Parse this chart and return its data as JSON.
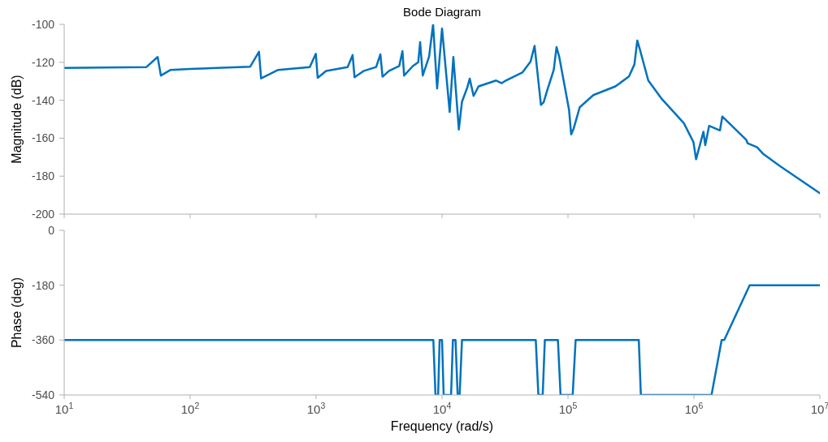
{
  "chart_data": [
    {
      "type": "line",
      "title": "Bode Diagram",
      "ylabel": "Magnitude (dB)",
      "log": "x",
      "grid": false,
      "tick_labels": "y",
      "marker": "none",
      "line_style": "solid",
      "xlim": [
        10,
        10000000
      ],
      "xticks": [
        10,
        100,
        1000,
        10000,
        100000,
        1000000,
        10000000
      ],
      "ylim": [
        -200,
        -100
      ],
      "yticks": [
        -200,
        -180,
        -160,
        -140,
        -120,
        -100
      ],
      "series": [
        {
          "color": "#0072bd",
          "x": [
            10,
            45,
            55.2,
            58.6,
            70,
            100,
            300,
            352,
            366,
            500,
            891,
            995,
            1030,
            1200,
            1780,
            1950,
            2020,
            2400,
            3000,
            3240,
            3370,
            3800,
            4570,
            4850,
            5000,
            5860,
            6470,
            6700,
            7030,
            7890,
            8490,
            9140,
            10000,
            11500,
            12300,
            13600,
            14400,
            15900,
            16600,
            17800,
            19500,
            26900,
            29800,
            32100,
            43400,
            50400,
            54300,
            61000,
            64100,
            68100,
            77100,
            81100,
            85100,
            102000,
            106000,
            111000,
            124000,
            159000,
            238000,
            305000,
            337000,
            355000,
            373000,
            434000,
            557000,
            832000,
            991000,
            1040000,
            1190000,
            1230000,
            1320000,
            1610000,
            1680000,
            2600000,
            2670000,
            3180000,
            3550000,
            4790000,
            10000000
          ],
          "values": [
            -123,
            -122.5,
            -117.2,
            -127,
            -124,
            -123.5,
            -122.3,
            -114.5,
            -128.5,
            -124,
            -122.5,
            -115.5,
            -128.2,
            -124.6,
            -122.5,
            -116.2,
            -127.9,
            -124.5,
            -122.5,
            -115.8,
            -127.6,
            -124.5,
            -122,
            -114.1,
            -127,
            -122,
            -120,
            -109.4,
            -127,
            -117,
            -100,
            -133.8,
            -102.2,
            -146.2,
            -117.2,
            -155.4,
            -140.8,
            -133.1,
            -128.6,
            -137.7,
            -132.7,
            -129.6,
            -131,
            -129.6,
            -125.4,
            -119.7,
            -111.3,
            -142.5,
            -141.1,
            -135.2,
            -124,
            -112,
            -116.9,
            -145.1,
            -158,
            -154.9,
            -143.7,
            -137.3,
            -132.7,
            -127.5,
            -121.1,
            -108.5,
            -113.4,
            -129.6,
            -139.4,
            -152.1,
            -162,
            -171.1,
            -156.6,
            -163.7,
            -153.5,
            -155.9,
            -148.6,
            -160.8,
            -162.7,
            -164.8,
            -168.3,
            -174.6,
            -189
          ]
        }
      ]
    },
    {
      "type": "line",
      "xlabel": "Frequency  (rad/s)",
      "ylabel": "Phase (deg)",
      "log": "x",
      "grid": false,
      "marker": "none",
      "line_style": "solid",
      "xlim": [
        10,
        10000000
      ],
      "xticks": [
        {
          "value": 10,
          "label": "10$^{1}$"
        },
        {
          "value": 100,
          "label": "10$^{2}$"
        },
        {
          "value": 1000,
          "label": "10$^{3}$"
        },
        {
          "value": 10000,
          "label": "10$^{4}$"
        },
        {
          "value": 100000,
          "label": "10$^{5}$"
        },
        {
          "value": 1000000,
          "label": "10$^{6}$"
        },
        {
          "value": 10000000,
          "label": "10$^{7}$"
        }
      ],
      "ylim": [
        -540,
        0
      ],
      "yticks": [
        -540,
        -360,
        -180,
        0
      ],
      "series": [
        {
          "color": "#0072bd",
          "x": [
            10,
            8530,
            8870,
            9310,
            9570,
            10000,
            10300,
            11800,
            12200,
            12800,
            13300,
            13800,
            14400,
            55500,
            58200,
            63000,
            65500,
            83200,
            87300,
            109000,
            115000,
            365000,
            379000,
            1380000,
            1660000,
            1740000,
            2770000,
            10000000
          ],
          "values": [
            -360,
            -360,
            -540,
            -540,
            -360,
            -360,
            -540,
            -540,
            -360,
            -360,
            -540,
            -540,
            -360,
            -360,
            -540,
            -540,
            -360,
            -360,
            -540,
            -540,
            -360,
            -360,
            -540,
            -540,
            -360,
            -360,
            -180,
            -180
          ]
        }
      ]
    }
  ]
}
